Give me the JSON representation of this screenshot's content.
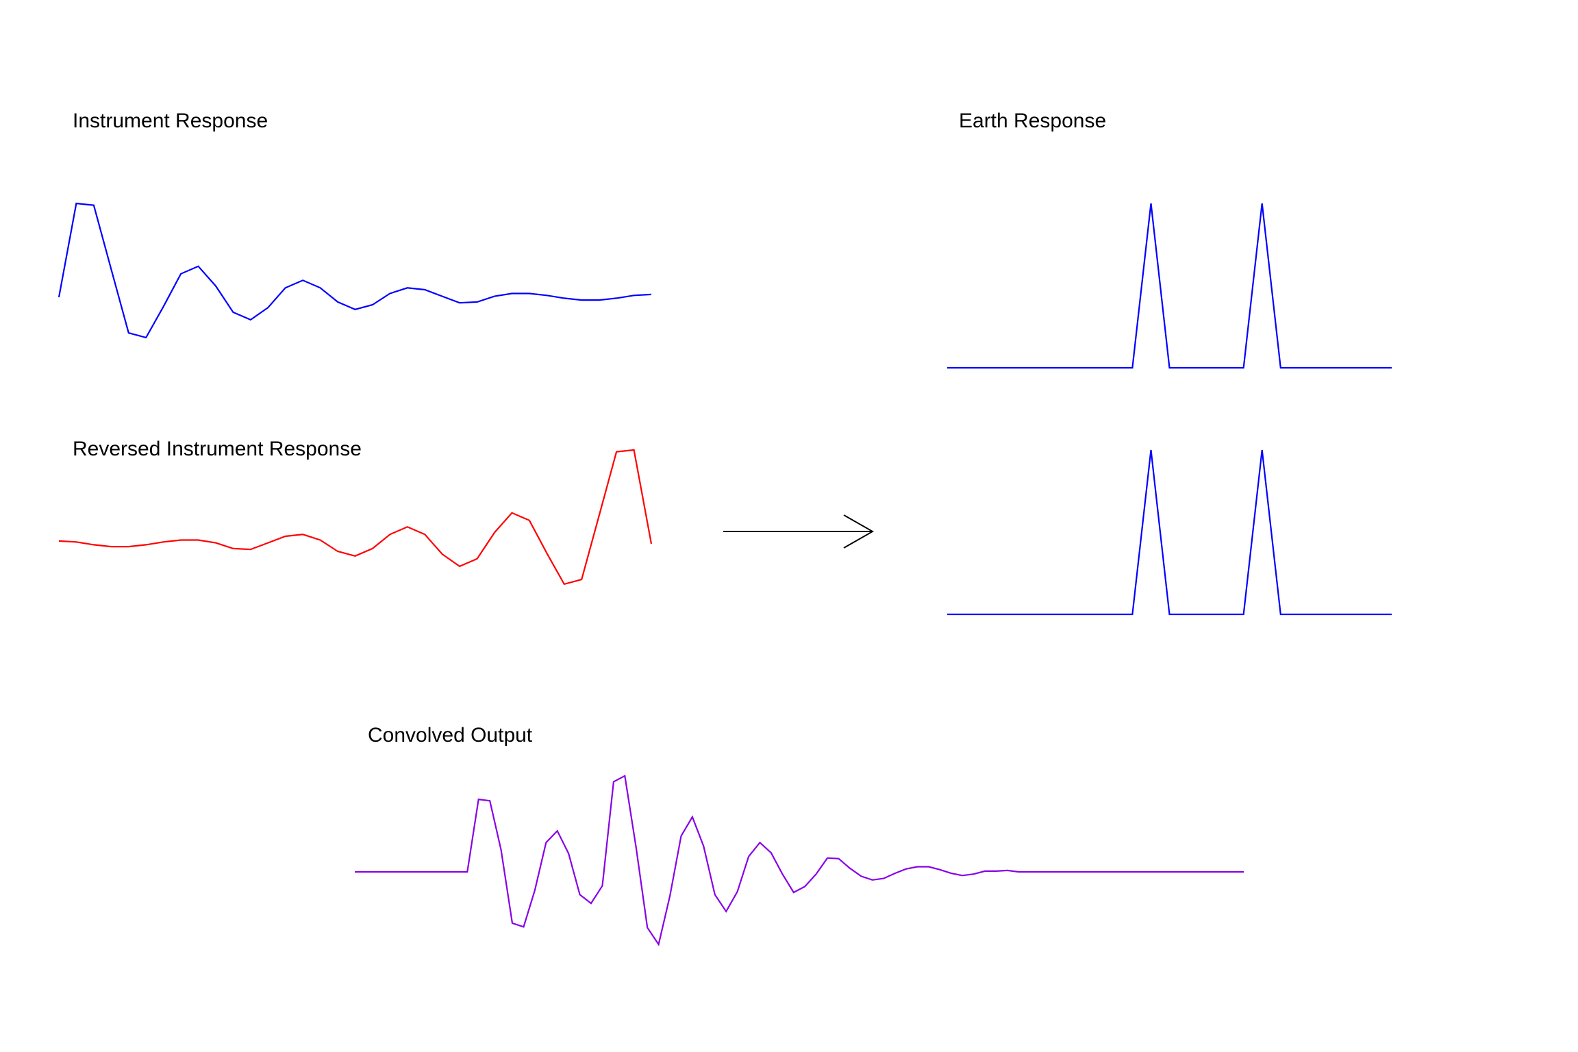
{
  "titles": {
    "instrument": "Instrument Response",
    "earth": "Earth Response",
    "reversed": "Reversed Instrument Response",
    "convolved": "Convolved Output"
  },
  "colors": {
    "instrument": "#0000ff",
    "earth": "#0000ff",
    "reversed": "#ff0000",
    "convolved": "#8800e8",
    "arrow": "#000000"
  },
  "signals": {
    "instrument": [
      0,
      1.0,
      0.98,
      0.3,
      -0.38,
      -0.43,
      -0.1,
      0.25,
      0.33,
      0.12,
      -0.16,
      -0.24,
      -0.11,
      0.1,
      0.18,
      0.1,
      -0.05,
      -0.13,
      -0.08,
      0.04,
      0.1,
      0.08,
      0.01,
      -0.06,
      -0.05,
      0.01,
      0.04,
      0.04,
      0.02,
      -0.01,
      -0.03,
      -0.03,
      -0.01,
      0.02,
      0.03
    ],
    "reversed": [
      0.03,
      0.02,
      -0.01,
      -0.03,
      -0.03,
      -0.01,
      0.02,
      0.04,
      0.04,
      0.01,
      -0.05,
      -0.06,
      0.01,
      0.08,
      0.1,
      0.04,
      -0.08,
      -0.13,
      -0.05,
      0.1,
      0.18,
      0.1,
      -0.11,
      -0.24,
      -0.16,
      0.12,
      0.33,
      0.25,
      -0.1,
      -0.43,
      -0.38,
      0.3,
      0.98,
      1.0,
      0
    ],
    "earth_top": [
      0,
      0,
      0,
      0,
      0,
      0,
      0,
      0,
      0,
      0,
      0,
      1,
      0,
      0,
      0,
      0,
      0,
      1,
      0,
      0,
      0,
      0,
      0,
      0,
      0
    ],
    "earth_bottom": [
      0,
      0,
      0,
      0,
      0,
      0,
      0,
      0,
      0,
      0,
      0,
      1,
      0,
      0,
      0,
      0,
      0,
      1,
      0,
      0,
      0,
      0,
      0,
      0,
      0
    ],
    "convolved": [
      0,
      0,
      0,
      0,
      0,
      0,
      0,
      0,
      0,
      0,
      0,
      0.99,
      0.97,
      0.3,
      -0.7,
      -0.75,
      -0.25,
      0.4,
      0.56,
      0.25,
      -0.31,
      -0.43,
      -0.19,
      1.23,
      1.31,
      0.33,
      -0.76,
      -0.99,
      -0.33,
      0.49,
      0.75,
      0.35,
      -0.31,
      -0.54,
      -0.27,
      0.21,
      0.4,
      0.26,
      -0.03,
      -0.28,
      -0.2,
      -0.03,
      0.19,
      0.18,
      0.05,
      -0.06,
      -0.11,
      -0.09,
      -0.02,
      0.04,
      0.07,
      0.07,
      0.03,
      -0.02,
      -0.05,
      -0.03,
      0.01,
      0.01,
      0.02,
      0,
      0,
      0,
      0,
      0,
      0,
      0,
      0,
      0,
      0,
      0,
      0,
      0,
      0,
      0,
      0,
      0,
      0,
      0,
      0,
      0
    ]
  }
}
